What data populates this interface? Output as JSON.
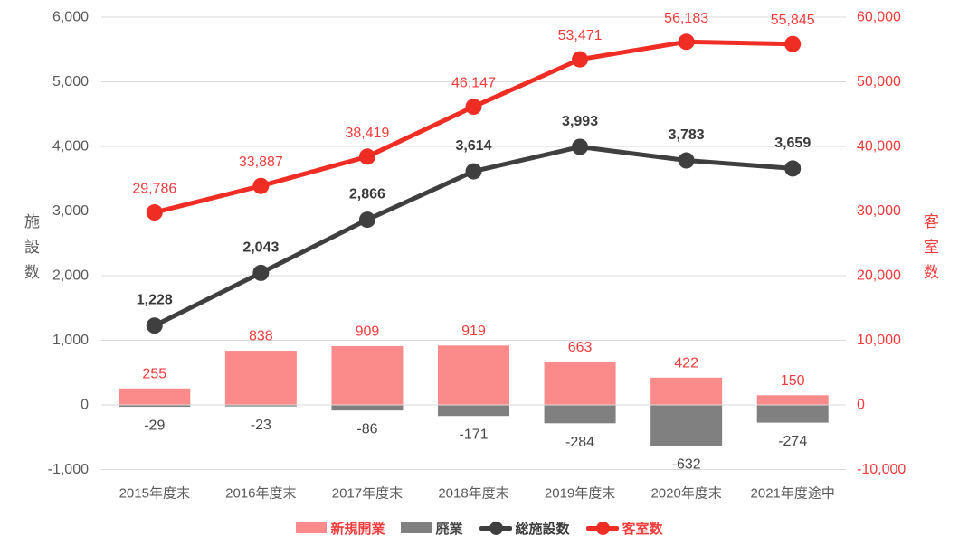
{
  "chart_data": {
    "type": "combo",
    "title": "",
    "categories": [
      "2015年度末",
      "2016年度末",
      "2017年度末",
      "2018年度末",
      "2019年度末",
      "2020年度末",
      "2021年度途中"
    ],
    "series": [
      {
        "name": "新規開業",
        "type": "bar",
        "axis": "left",
        "color": "#FB8A8A",
        "label_color": "#F13B3B",
        "values": [
          255,
          838,
          909,
          919,
          663,
          422,
          150
        ]
      },
      {
        "name": "廃業",
        "type": "bar",
        "axis": "left",
        "color": "#808080",
        "label_color": "#474747",
        "values": [
          -29,
          -23,
          -86,
          -171,
          -284,
          -632,
          -274
        ]
      },
      {
        "name": "総施設数",
        "type": "line",
        "axis": "left",
        "color": "#3F3F3F",
        "label_color": "#3A3A3A",
        "label_bold": true,
        "values": [
          1228,
          2043,
          2866,
          3614,
          3993,
          3783,
          3659
        ]
      },
      {
        "name": "客室数",
        "type": "line",
        "axis": "right",
        "color": "#EF2D24",
        "label_color": "#F13B3B",
        "label_bold": false,
        "values": [
          29786,
          33887,
          38419,
          46147,
          53471,
          56183,
          55845
        ]
      }
    ],
    "left_axis": {
      "title": "施設数",
      "min": -1000,
      "max": 6000,
      "step": 1000,
      "tick_color": "#595959",
      "title_color": "#595959"
    },
    "right_axis": {
      "title": "客室数",
      "min": -10000,
      "max": 60000,
      "step": 10000,
      "tick_color": "#F13B3B",
      "title_color": "#F13B3B"
    },
    "x_axis": {
      "tick_color": "#595959"
    },
    "grid": {
      "visible": true,
      "color": "#D9D9D9"
    },
    "legend_position": "bottom",
    "background": "#FFFFFF"
  }
}
